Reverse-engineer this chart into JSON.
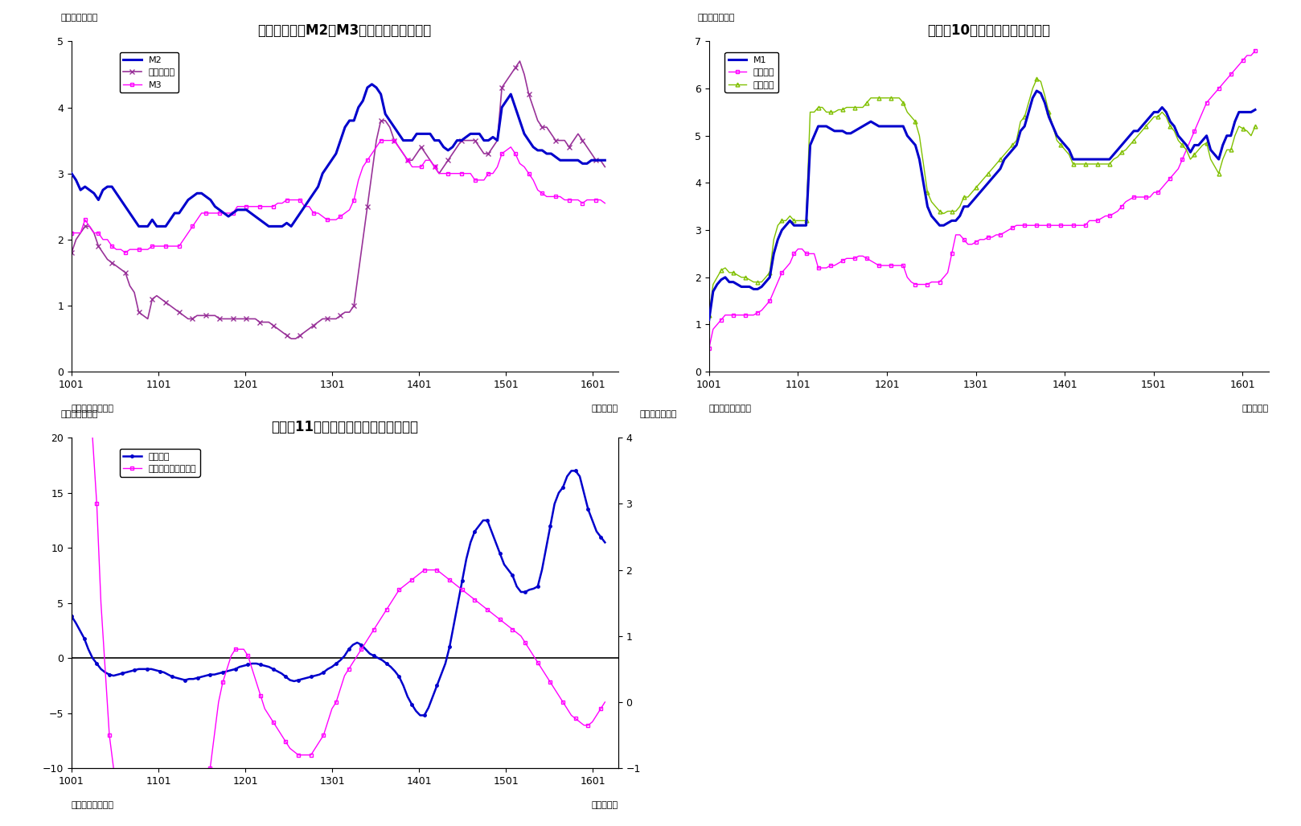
{
  "fig9": {
    "title": "（図表９）　M2、M3、広義流動性の動き",
    "ylabel": "（前年比、％）",
    "xlabel_right": "（年／月）",
    "source": "（資料）日本銀行",
    "ylim": [
      0,
      5
    ],
    "yticks": [
      0,
      1,
      2,
      3,
      4,
      5
    ],
    "xticks": [
      1001,
      1101,
      1201,
      1301,
      1401,
      1501,
      1601
    ],
    "M2": [
      3.0,
      2.9,
      2.75,
      2.8,
      2.75,
      2.7,
      2.6,
      2.75,
      2.8,
      2.8,
      2.7,
      2.6,
      2.5,
      2.4,
      2.3,
      2.2,
      2.2,
      2.2,
      2.3,
      2.2,
      2.2,
      2.2,
      2.3,
      2.4,
      2.4,
      2.5,
      2.6,
      2.65,
      2.7,
      2.7,
      2.65,
      2.6,
      2.5,
      2.45,
      2.4,
      2.35,
      2.4,
      2.45,
      2.45,
      2.45,
      2.4,
      2.35,
      2.3,
      2.25,
      2.2,
      2.2,
      2.2,
      2.2,
      2.25,
      2.2,
      2.3,
      2.4,
      2.5,
      2.6,
      2.7,
      2.8,
      3.0,
      3.1,
      3.2,
      3.3,
      3.5,
      3.7,
      3.8,
      3.8,
      4.0,
      4.1,
      4.3,
      4.35,
      4.3,
      4.2,
      3.9,
      3.8,
      3.7,
      3.6,
      3.5,
      3.5,
      3.5,
      3.6,
      3.6,
      3.6,
      3.6,
      3.5,
      3.5,
      3.4,
      3.35,
      3.4,
      3.5,
      3.5,
      3.55,
      3.6,
      3.6,
      3.6,
      3.5,
      3.5,
      3.55,
      3.5,
      4.0,
      4.1,
      4.2,
      4.0,
      3.8,
      3.6,
      3.5,
      3.4,
      3.35,
      3.35,
      3.3,
      3.3,
      3.25,
      3.2,
      3.2,
      3.2,
      3.2,
      3.2,
      3.15,
      3.15,
      3.2,
      3.2,
      3.2,
      3.2
    ],
    "kouki": [
      1.8,
      2.0,
      2.1,
      2.2,
      2.2,
      2.1,
      1.9,
      1.8,
      1.7,
      1.65,
      1.6,
      1.55,
      1.5,
      1.3,
      1.2,
      0.9,
      0.85,
      0.8,
      1.1,
      1.15,
      1.1,
      1.05,
      1.0,
      0.95,
      0.9,
      0.85,
      0.8,
      0.8,
      0.85,
      0.85,
      0.85,
      0.85,
      0.85,
      0.8,
      0.8,
      0.8,
      0.8,
      0.8,
      0.8,
      0.8,
      0.8,
      0.8,
      0.75,
      0.75,
      0.75,
      0.7,
      0.65,
      0.6,
      0.55,
      0.5,
      0.5,
      0.55,
      0.6,
      0.65,
      0.7,
      0.75,
      0.8,
      0.8,
      0.8,
      0.8,
      0.85,
      0.9,
      0.9,
      1.0,
      1.5,
      2.0,
      2.5,
      3.0,
      3.5,
      3.8,
      3.8,
      3.7,
      3.5,
      3.4,
      3.3,
      3.2,
      3.2,
      3.3,
      3.4,
      3.3,
      3.2,
      3.1,
      3.0,
      3.1,
      3.2,
      3.3,
      3.4,
      3.5,
      3.5,
      3.5,
      3.5,
      3.4,
      3.3,
      3.3,
      3.4,
      3.5,
      4.3,
      4.4,
      4.5,
      4.6,
      4.7,
      4.5,
      4.2,
      4.0,
      3.8,
      3.7,
      3.7,
      3.6,
      3.5,
      3.5,
      3.5,
      3.4,
      3.5,
      3.6,
      3.5,
      3.4,
      3.3,
      3.2,
      3.2,
      3.1
    ],
    "M3": [
      2.1,
      2.1,
      2.1,
      2.3,
      2.2,
      2.1,
      2.1,
      2.0,
      2.0,
      1.9,
      1.85,
      1.85,
      1.8,
      1.85,
      1.85,
      1.85,
      1.85,
      1.85,
      1.9,
      1.9,
      1.9,
      1.9,
      1.9,
      1.9,
      1.9,
      2.0,
      2.1,
      2.2,
      2.3,
      2.4,
      2.4,
      2.4,
      2.4,
      2.4,
      2.4,
      2.4,
      2.4,
      2.5,
      2.5,
      2.5,
      2.5,
      2.5,
      2.5,
      2.5,
      2.5,
      2.5,
      2.55,
      2.55,
      2.6,
      2.6,
      2.6,
      2.6,
      2.5,
      2.5,
      2.4,
      2.4,
      2.35,
      2.3,
      2.3,
      2.3,
      2.35,
      2.4,
      2.45,
      2.6,
      2.9,
      3.1,
      3.2,
      3.3,
      3.4,
      3.5,
      3.5,
      3.5,
      3.5,
      3.4,
      3.3,
      3.2,
      3.1,
      3.1,
      3.1,
      3.2,
      3.2,
      3.1,
      3.0,
      3.0,
      3.0,
      3.0,
      3.0,
      3.0,
      3.0,
      3.0,
      2.9,
      2.9,
      2.9,
      3.0,
      3.0,
      3.1,
      3.3,
      3.35,
      3.4,
      3.3,
      3.15,
      3.1,
      3.0,
      2.9,
      2.75,
      2.7,
      2.65,
      2.65,
      2.65,
      2.65,
      2.6,
      2.6,
      2.6,
      2.6,
      2.55,
      2.6,
      2.6,
      2.6,
      2.6,
      2.55
    ]
  },
  "fig10": {
    "title": "（図表10）　現金・預金の動き",
    "ylabel": "（前年比、％）",
    "xlabel_right": "（年／月）",
    "source": "（資料）日本銀行",
    "ylim": [
      0,
      7
    ],
    "yticks": [
      0,
      1,
      2,
      3,
      4,
      5,
      6,
      7
    ],
    "xticks": [
      1001,
      1101,
      1201,
      1301,
      1401,
      1501,
      1601
    ],
    "M1": [
      1.1,
      1.7,
      1.85,
      1.95,
      2.0,
      1.9,
      1.9,
      1.85,
      1.8,
      1.8,
      1.8,
      1.75,
      1.75,
      1.8,
      1.9,
      2.0,
      2.5,
      2.8,
      3.0,
      3.1,
      3.2,
      3.1,
      3.1,
      3.1,
      3.1,
      4.8,
      5.0,
      5.2,
      5.2,
      5.2,
      5.15,
      5.1,
      5.1,
      5.1,
      5.05,
      5.05,
      5.1,
      5.15,
      5.2,
      5.25,
      5.3,
      5.25,
      5.2,
      5.2,
      5.2,
      5.2,
      5.2,
      5.2,
      5.2,
      5.0,
      4.9,
      4.8,
      4.5,
      4.0,
      3.5,
      3.3,
      3.2,
      3.1,
      3.1,
      3.15,
      3.2,
      3.2,
      3.3,
      3.5,
      3.5,
      3.6,
      3.7,
      3.8,
      3.9,
      4.0,
      4.1,
      4.2,
      4.3,
      4.5,
      4.6,
      4.7,
      4.8,
      5.1,
      5.2,
      5.5,
      5.8,
      5.95,
      5.9,
      5.7,
      5.4,
      5.2,
      5.0,
      4.9,
      4.8,
      4.7,
      4.5,
      4.5,
      4.5,
      4.5,
      4.5,
      4.5,
      4.5,
      4.5,
      4.5,
      4.5,
      4.6,
      4.7,
      4.8,
      4.9,
      5.0,
      5.1,
      5.1,
      5.2,
      5.3,
      5.4,
      5.5,
      5.5,
      5.6,
      5.5,
      5.3,
      5.2,
      5.0,
      4.9,
      4.8,
      4.65,
      4.8,
      4.8,
      4.9,
      5.0,
      4.7,
      4.6,
      4.5,
      4.8,
      5.0,
      5.0,
      5.3,
      5.5,
      5.5,
      5.5,
      5.5,
      5.55
    ],
    "genkin": [
      0.5,
      0.9,
      1.0,
      1.1,
      1.2,
      1.2,
      1.2,
      1.2,
      1.2,
      1.2,
      1.2,
      1.2,
      1.25,
      1.3,
      1.4,
      1.5,
      1.7,
      1.9,
      2.1,
      2.2,
      2.3,
      2.5,
      2.6,
      2.6,
      2.5,
      2.5,
      2.5,
      2.2,
      2.2,
      2.2,
      2.25,
      2.25,
      2.3,
      2.35,
      2.4,
      2.4,
      2.4,
      2.45,
      2.45,
      2.4,
      2.35,
      2.3,
      2.25,
      2.25,
      2.25,
      2.25,
      2.25,
      2.25,
      2.25,
      2.0,
      1.9,
      1.85,
      1.85,
      1.85,
      1.85,
      1.9,
      1.9,
      1.9,
      2.0,
      2.1,
      2.5,
      2.9,
      2.9,
      2.8,
      2.7,
      2.7,
      2.75,
      2.8,
      2.8,
      2.85,
      2.85,
      2.9,
      2.9,
      2.95,
      3.0,
      3.05,
      3.1,
      3.1,
      3.1,
      3.1,
      3.1,
      3.1,
      3.1,
      3.1,
      3.1,
      3.1,
      3.1,
      3.1,
      3.1,
      3.1,
      3.1,
      3.1,
      3.1,
      3.1,
      3.2,
      3.2,
      3.2,
      3.25,
      3.3,
      3.3,
      3.35,
      3.4,
      3.5,
      3.6,
      3.65,
      3.7,
      3.7,
      3.7,
      3.7,
      3.7,
      3.8,
      3.8,
      3.9,
      4.0,
      4.1,
      4.2,
      4.3,
      4.5,
      4.7,
      4.9,
      5.1,
      5.3,
      5.5,
      5.7,
      5.8,
      5.9,
      6.0,
      6.1,
      6.2,
      6.3,
      6.4,
      6.5,
      6.6,
      6.7,
      6.7,
      6.8
    ],
    "yokin": [
      1.2,
      1.85,
      2.0,
      2.15,
      2.2,
      2.1,
      2.1,
      2.05,
      2.0,
      2.0,
      1.95,
      1.9,
      1.9,
      1.9,
      2.0,
      2.1,
      2.8,
      3.1,
      3.2,
      3.2,
      3.3,
      3.2,
      3.2,
      3.2,
      3.2,
      5.5,
      5.5,
      5.6,
      5.6,
      5.5,
      5.5,
      5.5,
      5.55,
      5.55,
      5.6,
      5.6,
      5.6,
      5.6,
      5.6,
      5.7,
      5.8,
      5.8,
      5.8,
      5.8,
      5.8,
      5.8,
      5.8,
      5.8,
      5.7,
      5.5,
      5.4,
      5.3,
      5.0,
      4.4,
      3.8,
      3.6,
      3.5,
      3.4,
      3.35,
      3.4,
      3.4,
      3.4,
      3.5,
      3.7,
      3.7,
      3.8,
      3.9,
      4.0,
      4.1,
      4.2,
      4.3,
      4.4,
      4.5,
      4.6,
      4.7,
      4.8,
      4.9,
      5.3,
      5.4,
      5.7,
      6.0,
      6.2,
      6.15,
      5.85,
      5.5,
      5.2,
      4.9,
      4.8,
      4.7,
      4.6,
      4.4,
      4.4,
      4.4,
      4.4,
      4.4,
      4.4,
      4.4,
      4.4,
      4.4,
      4.4,
      4.5,
      4.55,
      4.65,
      4.7,
      4.8,
      4.9,
      5.0,
      5.1,
      5.2,
      5.3,
      5.4,
      5.4,
      5.5,
      5.4,
      5.2,
      5.1,
      4.9,
      4.8,
      4.7,
      4.5,
      4.6,
      4.7,
      4.8,
      4.85,
      4.5,
      4.35,
      4.2,
      4.5,
      4.7,
      4.7,
      5.0,
      5.2,
      5.15,
      5.1,
      5.0,
      5.2
    ]
  },
  "fig11": {
    "title": "（図表11）　投資信託と準通貨の動き",
    "ylabel_left": "（前年比、％）",
    "ylabel_right": "（前年比、％）",
    "xlabel_right": "（年／月）",
    "source": "（資料）日本銀行",
    "ylim_left": [
      -10,
      20
    ],
    "ylim_right": [
      -1.0,
      4.0
    ],
    "yticks_left": [
      -10,
      -5,
      0,
      5,
      10,
      15,
      20
    ],
    "yticks_right": [
      -1.0,
      0.0,
      1.0,
      2.0,
      3.0,
      4.0
    ],
    "xticks": [
      1001,
      1101,
      1201,
      1301,
      1401,
      1501,
      1601
    ],
    "invest": [
      3.8,
      3.2,
      2.5,
      1.8,
      0.8,
      0.0,
      -0.5,
      -1.0,
      -1.3,
      -1.5,
      -1.6,
      -1.5,
      -1.4,
      -1.3,
      -1.2,
      -1.1,
      -1.0,
      -1.0,
      -1.0,
      -1.0,
      -1.1,
      -1.2,
      -1.3,
      -1.5,
      -1.7,
      -1.8,
      -1.9,
      -2.0,
      -1.9,
      -1.9,
      -1.8,
      -1.7,
      -1.6,
      -1.5,
      -1.5,
      -1.4,
      -1.3,
      -1.2,
      -1.1,
      -1.0,
      -0.8,
      -0.7,
      -0.6,
      -0.5,
      -0.5,
      -0.6,
      -0.7,
      -0.8,
      -1.0,
      -1.2,
      -1.4,
      -1.7,
      -2.0,
      -2.1,
      -2.0,
      -1.9,
      -1.8,
      -1.7,
      -1.6,
      -1.5,
      -1.3,
      -1.0,
      -0.8,
      -0.5,
      -0.2,
      0.2,
      0.8,
      1.2,
      1.4,
      1.2,
      0.8,
      0.4,
      0.2,
      0.0,
      -0.2,
      -0.5,
      -0.8,
      -1.2,
      -1.7,
      -2.5,
      -3.5,
      -4.2,
      -4.8,
      -5.2,
      -5.2,
      -4.5,
      -3.5,
      -2.5,
      -1.5,
      -0.5,
      1.0,
      3.0,
      5.0,
      7.0,
      9.0,
      10.5,
      11.5,
      12.0,
      12.5,
      12.5,
      11.5,
      10.5,
      9.5,
      8.5,
      8.0,
      7.5,
      6.5,
      6.0,
      6.0,
      6.2,
      6.3,
      6.5,
      8.0,
      10.0,
      12.0,
      14.0,
      15.0,
      15.5,
      16.5,
      17.0,
      17.0,
      16.5,
      15.0,
      13.5,
      12.5,
      11.5,
      11.0,
      10.5
    ],
    "juntuka": [
      12.0,
      11.0,
      9.5,
      7.5,
      5.5,
      4.0,
      3.0,
      1.5,
      0.5,
      -0.5,
      -1.0,
      -2.0,
      -3.0,
      -4.0,
      -5.0,
      -6.2,
      -6.5,
      -6.5,
      -6.4,
      -6.3,
      -6.2,
      -6.0,
      -5.8,
      -5.5,
      -5.2,
      -4.8,
      -4.5,
      -4.0,
      -3.5,
      -3.0,
      -2.5,
      -2.0,
      -1.5,
      -1.0,
      -0.5,
      0.0,
      0.3,
      0.5,
      0.7,
      0.8,
      0.8,
      0.8,
      0.7,
      0.5,
      0.3,
      0.1,
      -0.1,
      -0.2,
      -0.3,
      -0.4,
      -0.5,
      -0.6,
      -0.7,
      -0.75,
      -0.8,
      -0.8,
      -0.8,
      -0.8,
      -0.7,
      -0.6,
      -0.5,
      -0.3,
      -0.1,
      0.0,
      0.2,
      0.4,
      0.5,
      0.6,
      0.7,
      0.8,
      0.9,
      1.0,
      1.1,
      1.2,
      1.3,
      1.4,
      1.5,
      1.6,
      1.7,
      1.75,
      1.8,
      1.85,
      1.9,
      1.95,
      2.0,
      2.0,
      2.0,
      2.0,
      1.95,
      1.9,
      1.85,
      1.8,
      1.75,
      1.7,
      1.65,
      1.6,
      1.55,
      1.5,
      1.45,
      1.4,
      1.35,
      1.3,
      1.25,
      1.2,
      1.15,
      1.1,
      1.05,
      1.0,
      0.9,
      0.8,
      0.7,
      0.6,
      0.5,
      0.4,
      0.3,
      0.2,
      0.1,
      0.0,
      -0.1,
      -0.2,
      -0.25,
      -0.3,
      -0.35,
      -0.35,
      -0.3,
      -0.2,
      -0.1,
      0.0
    ]
  },
  "legend9": [
    "M2",
    "広義流動性",
    "M3"
  ],
  "legend10": [
    "M1",
    "現金通貨",
    "預金通貨"
  ],
  "legend11": [
    "投資信託",
    "準通貨（右メモリ）"
  ],
  "colors": {
    "blue": "#0000CC",
    "magenta": "#FF00FF",
    "green": "#80C000",
    "purple": "#993399"
  }
}
